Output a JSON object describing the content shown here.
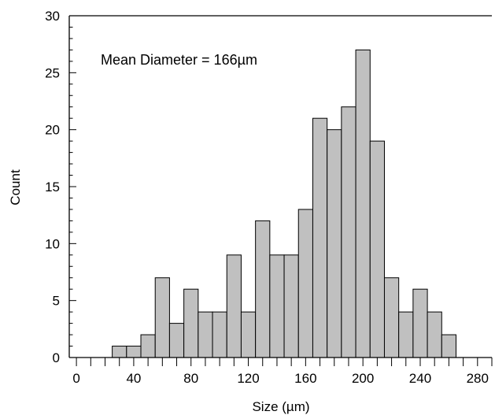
{
  "chart_data": {
    "type": "bar",
    "bin_width": 10,
    "bins": [
      {
        "x": 30,
        "count": 1
      },
      {
        "x": 40,
        "count": 1
      },
      {
        "x": 50,
        "count": 2
      },
      {
        "x": 60,
        "count": 7
      },
      {
        "x": 70,
        "count": 3
      },
      {
        "x": 80,
        "count": 6
      },
      {
        "x": 90,
        "count": 4
      },
      {
        "x": 100,
        "count": 4
      },
      {
        "x": 110,
        "count": 9
      },
      {
        "x": 120,
        "count": 4
      },
      {
        "x": 130,
        "count": 12
      },
      {
        "x": 140,
        "count": 9
      },
      {
        "x": 150,
        "count": 9
      },
      {
        "x": 160,
        "count": 13
      },
      {
        "x": 170,
        "count": 21
      },
      {
        "x": 180,
        "count": 20
      },
      {
        "x": 190,
        "count": 22
      },
      {
        "x": 200,
        "count": 27
      },
      {
        "x": 210,
        "count": 19
      },
      {
        "x": 220,
        "count": 7
      },
      {
        "x": 230,
        "count": 4
      },
      {
        "x": 240,
        "count": 6
      },
      {
        "x": 250,
        "count": 4
      },
      {
        "x": 260,
        "count": 2
      }
    ],
    "xlabel": "Size (µm)",
    "ylabel": "Count",
    "xlim": [
      -5,
      290
    ],
    "ylim": [
      0,
      30
    ],
    "xticks": [
      0,
      40,
      80,
      120,
      160,
      200,
      240,
      280
    ],
    "yticks": [
      0,
      5,
      10,
      15,
      20,
      25,
      30
    ],
    "annotation": "Mean Diameter = 166µm",
    "bar_color": "#c0c0c0",
    "edge_color": "#000000",
    "grid": false
  }
}
